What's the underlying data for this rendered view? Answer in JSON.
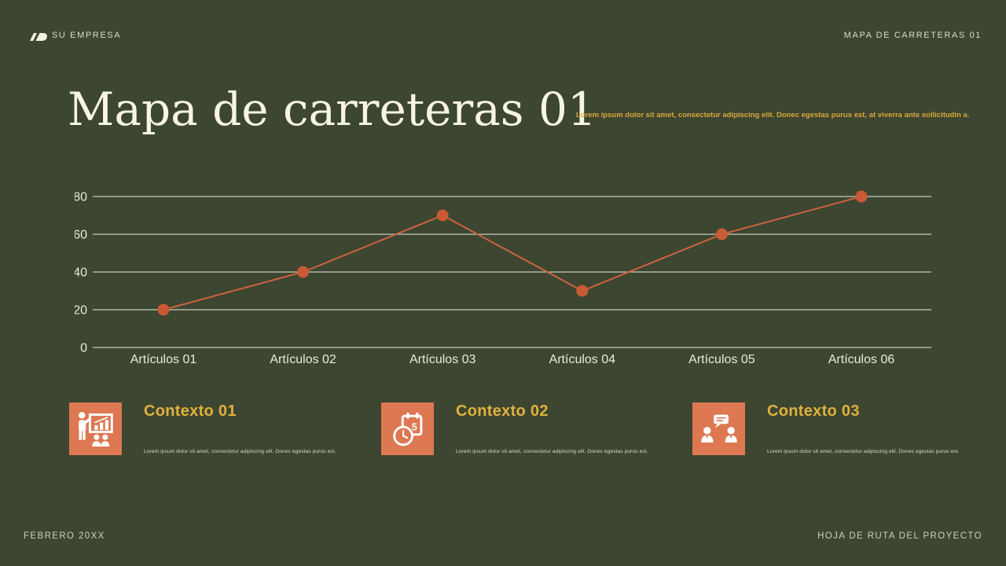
{
  "slide": {
    "header": {
      "company_name": "SU EMPRESA",
      "slide_label": "MAPA DE CARRETERAS 01"
    },
    "title": "Mapa de carreteras 01",
    "intro_text": "Lorem ipsum dolor sit amet, consectetur adipiscing elit. Donec egestas purus est, at viverra ante sollicitudin a.",
    "footer": {
      "date": "FEBRERO 20XX",
      "document_name": "HOJA DE RUTA DEL PROYECTO"
    }
  },
  "chart_data": {
    "type": "line",
    "title": "",
    "categories": [
      "Artículos 01",
      "Artículos 02",
      "Artículos 03",
      "Artículos 04",
      "Artículos 05",
      "Artículos 06"
    ],
    "values": [
      20,
      40,
      70,
      30,
      60,
      80
    ],
    "xlabel": "",
    "ylabel": "",
    "ylim": [
      0,
      80
    ],
    "yticks": [
      0,
      20,
      40,
      60,
      80
    ],
    "grid": true,
    "legend": false,
    "line_color": "#cc6240",
    "marker_color": "#c95a35",
    "marker": "circle"
  },
  "cards": [
    {
      "icon": "presentation-icon",
      "title": "Contexto 01",
      "body": "Lorem ipsum dolor sit amet, consectetur adipiscing elit. Donec egestas purus est."
    },
    {
      "icon": "calendar-clock-icon",
      "icon_text": "5",
      "title": "Contexto 02",
      "body": "Lorem ipsum dolor sit amet, consectetur adipiscing elit. Donec egestas purus est."
    },
    {
      "icon": "conversation-icon",
      "title": "Contexto 03",
      "body": "Lorem ipsum dolor sit amet, consectetur adipiscing elit. Donec egestas purus est."
    }
  ],
  "colors": {
    "background": "#3d4630",
    "title_cream": "#f8f4e6",
    "gold": "#d9a83c",
    "card_title_gold": "#e0b13e",
    "accent_orange": "#dd7852",
    "line_orange": "#cc6240",
    "marker_orange": "#c95a35",
    "grid_line": "#c9cdbb",
    "axis_label": "#e9ecdc",
    "muted_text": "#cdd0bf"
  }
}
